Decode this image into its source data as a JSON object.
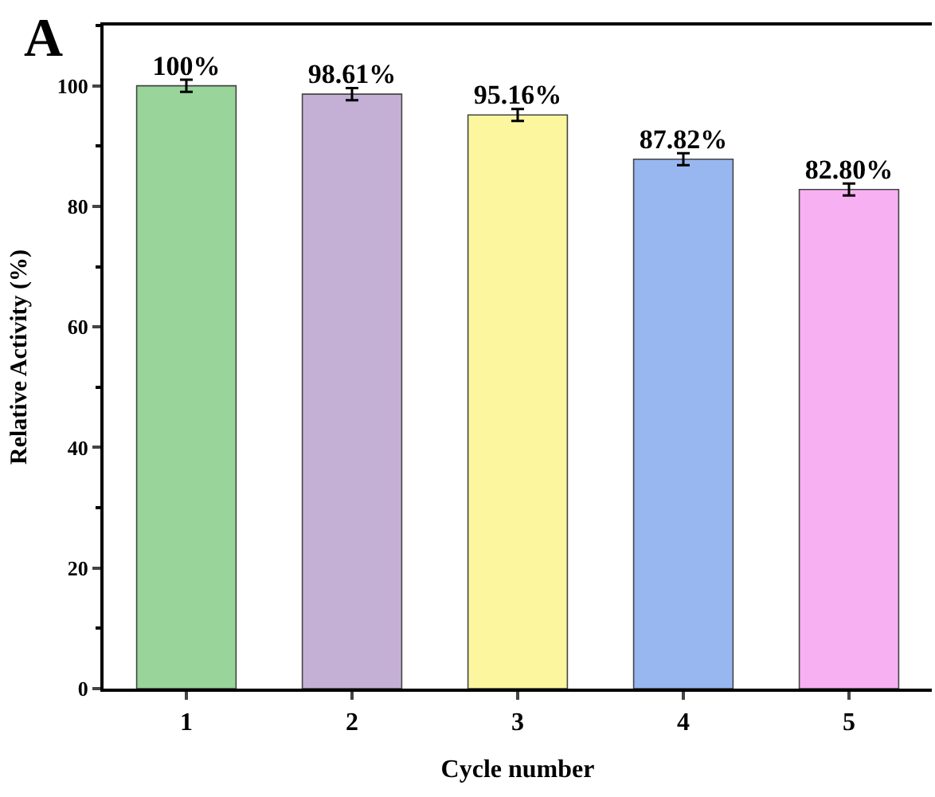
{
  "chart_data": {
    "type": "bar",
    "xlabel": "Cycle number",
    "ylabel": "Relative Activity (%)",
    "annotations": [
      "A"
    ],
    "categories": [
      "1",
      "2",
      "3",
      "4",
      "5"
    ],
    "values": [
      100,
      98.61,
      95.16,
      87.82,
      82.8
    ],
    "value_labels": [
      "100%",
      "98.61%",
      "95.16%",
      "87.82%",
      "82.80%"
    ],
    "errors": [
      1,
      1,
      1,
      1,
      1
    ],
    "colors": [
      "#99d49a",
      "#c5b0d5",
      "#fcf69e",
      "#98b7f0",
      "#f7b0f2"
    ],
    "ylim": [
      0,
      110
    ],
    "yticks": [
      0,
      20,
      40,
      60,
      80,
      100
    ],
    "legend": false
  }
}
